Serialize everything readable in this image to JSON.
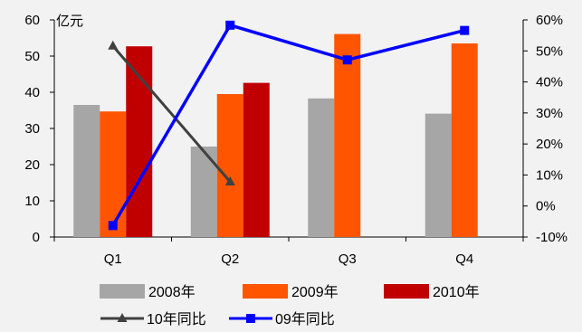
{
  "chart_data": {
    "type": "bar",
    "title": "",
    "categories": [
      "Q1",
      "Q2",
      "Q3",
      "Q4"
    ],
    "y_left": {
      "label": "亿元",
      "min": 0,
      "max": 60,
      "ticks": [
        0,
        10,
        20,
        30,
        40,
        50,
        60
      ]
    },
    "y_right": {
      "min": -10,
      "max": 60,
      "unit": "%",
      "ticks": [
        -10,
        0,
        10,
        20,
        30,
        40,
        50,
        60
      ]
    },
    "series": [
      {
        "name": "2008年",
        "kind": "bar",
        "axis": "left",
        "color": "#a6a6a6",
        "values": [
          36.5,
          25,
          38.3,
          34.1
        ]
      },
      {
        "name": "2009年",
        "kind": "bar",
        "axis": "left",
        "color": "#ff5500",
        "values": [
          34.7,
          39.5,
          56.1,
          53.5
        ]
      },
      {
        "name": "2010年",
        "kind": "bar",
        "axis": "left",
        "color": "#c00000",
        "values": [
          52.7,
          42.6,
          null,
          null
        ]
      },
      {
        "name": "10年同比",
        "kind": "line",
        "axis": "right",
        "color": "#404040",
        "marker": "triangle",
        "values": [
          51.6,
          7.8,
          null,
          null
        ]
      },
      {
        "name": "09年同比",
        "kind": "line",
        "axis": "right",
        "color": "#0000ff",
        "marker": "square",
        "values": [
          -6.3,
          58.3,
          47.1,
          56.6
        ]
      }
    ],
    "legend": {
      "position": "bottom"
    },
    "grid": false
  }
}
